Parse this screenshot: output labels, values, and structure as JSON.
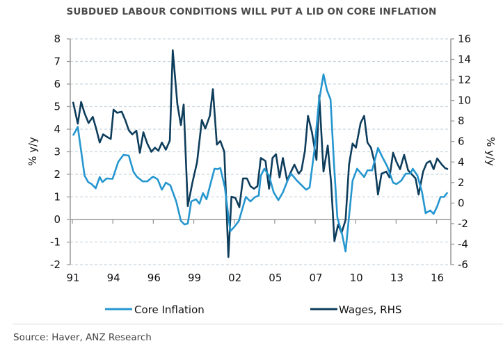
{
  "chart_data": {
    "type": "line",
    "title": "SUBDUED LABOUR CONDITIONS WILL PUT A LID ON CORE INFLATION",
    "ylabel": "% y/y",
    "y2label": "% y/y",
    "ylim": [
      -2,
      8
    ],
    "y2lim": [
      -6,
      16
    ],
    "yticks": [
      8,
      7,
      6,
      5,
      4,
      3,
      2,
      1,
      0,
      -1,
      -2
    ],
    "y2ticks": [
      16,
      14,
      12,
      10,
      8,
      6,
      4,
      2,
      0,
      -2,
      -4,
      -6
    ],
    "xlim": [
      1991,
      2017
    ],
    "xticks": [
      {
        "x": 1991.0,
        "label": "91"
      },
      {
        "x": 1993.77,
        "label": "94"
      },
      {
        "x": 1996.54,
        "label": "96"
      },
      {
        "x": 1999.31,
        "label": "99"
      },
      {
        "x": 2002.08,
        "label": "02"
      },
      {
        "x": 2004.85,
        "label": "05"
      },
      {
        "x": 2007.62,
        "label": "07"
      },
      {
        "x": 2010.39,
        "label": "10"
      },
      {
        "x": 2013.16,
        "label": "13"
      },
      {
        "x": 2015.93,
        "label": "16"
      }
    ],
    "grid": true,
    "legend_position": "bottom",
    "series": [
      {
        "name": "Core Inflation",
        "axis": "left",
        "color": "#2596cf",
        "x": [
          1991.05,
          1991.37,
          1991.84,
          1992.08,
          1992.32,
          1992.6,
          1992.87,
          1993.06,
          1993.35,
          1993.75,
          1994.14,
          1994.49,
          1994.86,
          1995.18,
          1995.41,
          1995.81,
          1996.13,
          1996.52,
          1996.84,
          1997.13,
          1997.4,
          1997.71,
          1998.11,
          1998.43,
          1998.67,
          1998.9,
          1999.14,
          1999.46,
          1999.7,
          1999.94,
          2000.18,
          2000.73,
          2000.94,
          2001.13,
          2001.44,
          2001.81,
          2002.08,
          2002.4,
          2002.87,
          2003.19,
          2003.51,
          2003.75,
          2003.9,
          2004.14,
          2004.46,
          2004.78,
          2005.1,
          2005.41,
          2005.73,
          2005.97,
          2006.37,
          2007.0,
          2007.24,
          2007.56,
          2007.87,
          2008.19,
          2008.43,
          2008.67,
          2008.9,
          2009.14,
          2009.46,
          2009.7,
          2010.18,
          2010.49,
          2010.97,
          2011.2,
          2011.52,
          2011.92,
          2012.24,
          2012.56,
          2012.95,
          2013.19,
          2013.51,
          2013.82,
          2014.14,
          2014.3,
          2014.62,
          2014.94,
          2015.18,
          2015.49,
          2015.73,
          2015.97,
          2016.2,
          2016.44,
          2016.68
        ],
        "y": [
          3.72,
          4.1,
          1.94,
          1.66,
          1.57,
          1.38,
          1.88,
          1.66,
          1.82,
          1.8,
          2.55,
          2.86,
          2.83,
          2.12,
          1.9,
          1.69,
          1.69,
          1.9,
          1.78,
          1.32,
          1.63,
          1.51,
          0.8,
          -0.06,
          -0.22,
          -0.18,
          0.8,
          0.9,
          0.7,
          1.17,
          0.9,
          2.25,
          2.23,
          2.28,
          1.42,
          -0.52,
          -0.33,
          -0.06,
          1.0,
          0.8,
          1.0,
          1.05,
          1.94,
          2.25,
          1.94,
          1.2,
          0.86,
          1.2,
          1.72,
          2.03,
          1.72,
          1.32,
          1.42,
          3.05,
          5.2,
          6.43,
          5.72,
          5.32,
          2.55,
          0.09,
          -0.65,
          -1.42,
          1.72,
          2.25,
          1.88,
          2.18,
          2.18,
          3.17,
          2.74,
          2.34,
          1.63,
          1.57,
          1.72,
          2.03,
          2.03,
          2.25,
          1.94,
          1.2,
          0.28,
          0.4,
          0.25,
          0.58,
          1.0,
          1.0,
          1.2
        ]
      },
      {
        "name": "Wages, RHS",
        "axis": "right",
        "color": "#0e3d5c",
        "x": [
          1991.05,
          1991.37,
          1991.6,
          1991.84,
          1992.11,
          1992.4,
          1992.63,
          1992.87,
          1993.11,
          1993.43,
          1993.63,
          1993.82,
          1994.06,
          1994.38,
          1994.62,
          1994.86,
          1995.1,
          1995.38,
          1995.62,
          1995.86,
          1996.13,
          1996.41,
          1996.65,
          1996.89,
          1997.13,
          1997.4,
          1997.67,
          1997.87,
          1998.19,
          1998.43,
          1998.62,
          1998.9,
          1999.22,
          1999.54,
          1999.86,
          2000.1,
          2000.41,
          2000.62,
          2000.89,
          2001.13,
          2001.4,
          2001.68,
          2001.89,
          2002.16,
          2002.43,
          2002.68,
          2002.95,
          2003.19,
          2003.43,
          2003.67,
          2003.9,
          2004.22,
          2004.46,
          2004.7,
          2004.94,
          2005.18,
          2005.41,
          2005.7,
          2005.97,
          2006.2,
          2006.49,
          2006.68,
          2006.92,
          2007.13,
          2007.4,
          2007.71,
          2007.9,
          2008.19,
          2008.48,
          2008.71,
          2008.94,
          2009.19,
          2009.43,
          2009.7,
          2009.94,
          2010.18,
          2010.41,
          2010.73,
          2010.97,
          2011.2,
          2011.44,
          2011.68,
          2011.92,
          2012.16,
          2012.48,
          2012.71,
          2012.95,
          2013.19,
          2013.43,
          2013.71,
          2013.98,
          2014.3,
          2014.49,
          2014.7,
          2015.01,
          2015.25,
          2015.49,
          2015.73,
          2015.97,
          2016.29,
          2016.52,
          2016.71
        ],
        "y": [
          9.86,
          7.74,
          9.86,
          8.75,
          7.8,
          8.4,
          7.26,
          5.9,
          6.7,
          6.4,
          6.25,
          9.1,
          8.8,
          8.9,
          8.1,
          7.1,
          6.7,
          7.05,
          4.9,
          6.9,
          5.8,
          5.0,
          5.4,
          5.1,
          5.9,
          5.2,
          6.1,
          14.9,
          9.6,
          7.6,
          9.6,
          -0.3,
          2.0,
          4.0,
          8.1,
          7.26,
          8.5,
          11.1,
          5.7,
          6.05,
          5.0,
          -5.26,
          0.63,
          0.5,
          -0.4,
          2.4,
          2.4,
          1.64,
          1.4,
          1.64,
          4.4,
          4.1,
          1.4,
          4.4,
          4.76,
          2.5,
          4.4,
          2.2,
          3.07,
          3.75,
          2.86,
          3.2,
          5.1,
          8.5,
          6.9,
          4.2,
          10.5,
          3.07,
          5.6,
          2.0,
          -3.7,
          -2.1,
          -2.9,
          -1.65,
          3.75,
          5.8,
          5.4,
          7.8,
          8.5,
          5.9,
          5.4,
          4.0,
          0.83,
          2.86,
          3.07,
          2.5,
          4.9,
          4.0,
          3.3,
          4.7,
          3.2,
          2.7,
          2.4,
          0.83,
          3.07,
          3.9,
          4.1,
          3.3,
          4.35,
          3.75,
          3.4,
          3.3
        ]
      }
    ]
  },
  "footer": {
    "source": "Source: Haver, ANZ Research"
  }
}
